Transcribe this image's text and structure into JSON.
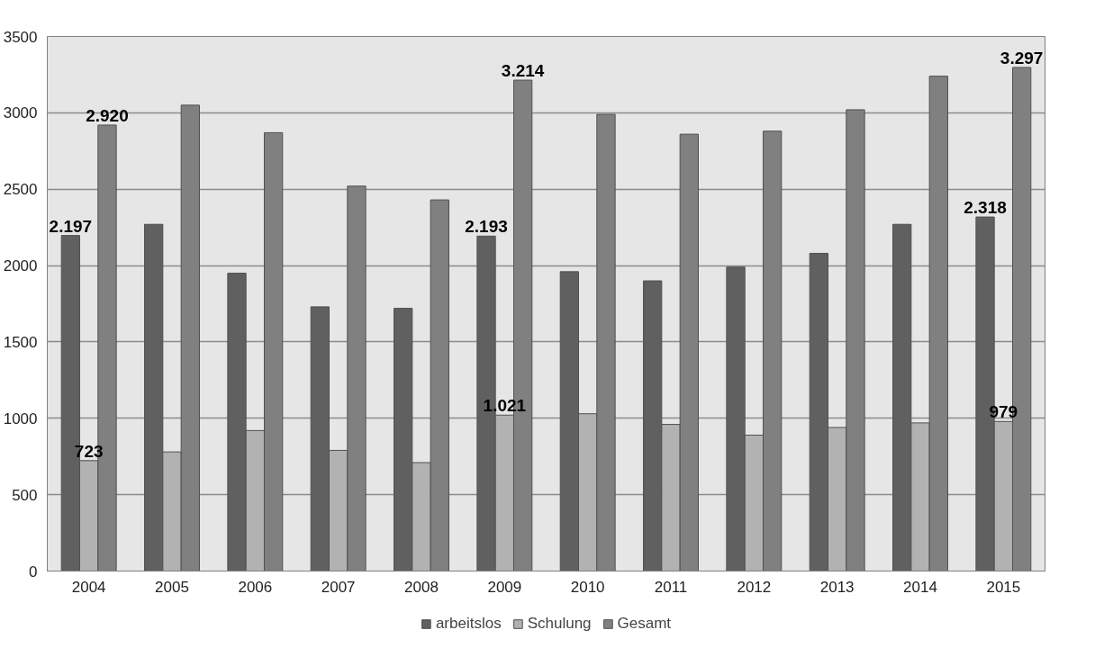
{
  "chart_data": {
    "type": "bar",
    "categories": [
      "2004",
      "2005",
      "2006",
      "2007",
      "2008",
      "2009",
      "2010",
      "2011",
      "2012",
      "2013",
      "2014",
      "2015"
    ],
    "series": [
      {
        "name": "arbeitslos",
        "color": "#606060",
        "values": [
          2197,
          2270,
          1950,
          1730,
          1720,
          2193,
          1960,
          1900,
          1990,
          2080,
          2270,
          2318
        ],
        "value_labels": [
          "2.197",
          null,
          null,
          null,
          null,
          "2.193",
          null,
          null,
          null,
          null,
          null,
          "2.318"
        ]
      },
      {
        "name": "Schulung",
        "color": "#b2b2b2",
        "values": [
          723,
          780,
          920,
          790,
          710,
          1021,
          1030,
          960,
          890,
          940,
          970,
          979
        ],
        "value_labels": [
          "723",
          null,
          null,
          null,
          null,
          "1.021",
          null,
          null,
          null,
          null,
          null,
          "979"
        ]
      },
      {
        "name": "Gesamt",
        "color": "#808080",
        "values": [
          2920,
          3050,
          2870,
          2520,
          2430,
          3214,
          2990,
          2860,
          2880,
          3020,
          3240,
          3297
        ],
        "value_labels": [
          "2.920",
          null,
          null,
          null,
          null,
          "3.214",
          null,
          null,
          null,
          null,
          null,
          "3.297"
        ]
      }
    ],
    "ylim": [
      0,
      3500
    ],
    "yticks": [
      0,
      500,
      1000,
      1500,
      2000,
      2500,
      3000,
      3500
    ],
    "grid": "y",
    "legend": "bottom"
  }
}
